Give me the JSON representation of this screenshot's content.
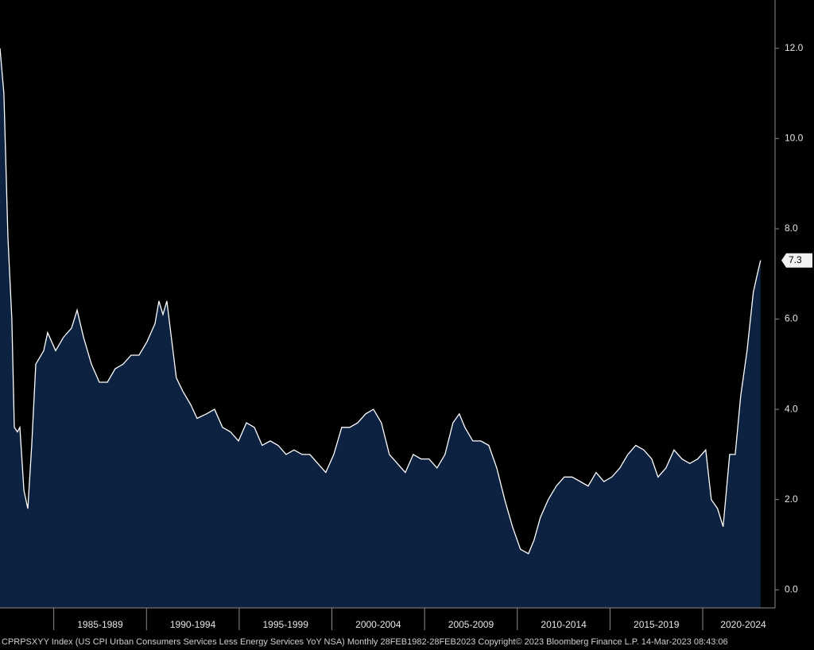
{
  "chart_data": {
    "type": "area",
    "footer": "CPRPSXYY Index (US CPI Urban Consumers Services Less Energy Services YoY NSA)  Monthly 28FEB1982-28FEB2023   Copyright© 2023 Bloomberg Finance L.P.   14-Mar-2023 08:43:06",
    "x": [
      1982.1,
      1982.31,
      1982.53,
      1982.74,
      1982.87,
      1983.04,
      1983.17,
      1983.39,
      1983.6,
      1983.81,
      1984.03,
      1984.46,
      1984.67,
      1985.1,
      1985.53,
      1985.96,
      1986.26,
      1986.6,
      1987.03,
      1987.46,
      1987.89,
      1988.31,
      1988.74,
      1989.17,
      1989.6,
      1990.03,
      1990.46,
      1990.67,
      1990.89,
      1991.1,
      1991.31,
      1991.61,
      1991.96,
      1992.39,
      1992.73,
      1993.24,
      1993.67,
      1994.1,
      1994.53,
      1994.96,
      1995.39,
      1995.82,
      1996.24,
      1996.67,
      1997.1,
      1997.53,
      1997.96,
      1998.39,
      1998.81,
      1999.24,
      1999.67,
      2000.1,
      2000.53,
      2000.96,
      2001.39,
      2001.82,
      2002.24,
      2002.67,
      2003.1,
      2003.53,
      2003.96,
      2004.39,
      2004.81,
      2005.24,
      2005.67,
      2006.1,
      2006.53,
      2006.87,
      2007.17,
      2007.6,
      2008.03,
      2008.46,
      2008.89,
      2009.32,
      2009.74,
      2010.17,
      2010.6,
      2010.9,
      2011.24,
      2011.67,
      2012.1,
      2012.53,
      2012.96,
      2013.39,
      2013.82,
      2014.25,
      2014.67,
      2015.1,
      2015.53,
      2015.96,
      2016.39,
      2016.82,
      2017.25,
      2017.59,
      2018.02,
      2018.45,
      2018.88,
      2019.3,
      2019.73,
      2020.16,
      2020.46,
      2020.8,
      2021.1,
      2021.45,
      2021.75,
      2022.05,
      2022.39,
      2022.73,
      2022.95,
      2023.12
    ],
    "series": [
      {
        "color": "#ffffff",
        "fill": "#0c2240",
        "values": [
          12.0,
          11.0,
          7.8,
          6.0,
          3.6,
          3.5,
          3.6,
          2.2,
          1.8,
          3.2,
          5.0,
          5.3,
          5.7,
          5.3,
          5.6,
          5.8,
          6.2,
          5.6,
          5.0,
          4.6,
          4.6,
          4.9,
          5.0,
          5.2,
          5.2,
          5.5,
          5.9,
          6.4,
          6.1,
          6.4,
          5.7,
          4.7,
          4.4,
          4.1,
          3.8,
          3.9,
          4.0,
          3.6,
          3.5,
          3.3,
          3.7,
          3.6,
          3.2,
          3.3,
          3.2,
          3.0,
          3.1,
          3.0,
          3.0,
          2.8,
          2.6,
          3.0,
          3.6,
          3.6,
          3.7,
          3.9,
          4.0,
          3.7,
          3.0,
          2.8,
          2.6,
          3.0,
          2.9,
          2.9,
          2.7,
          3.0,
          3.7,
          3.9,
          3.6,
          3.3,
          3.3,
          3.2,
          2.7,
          2.0,
          1.4,
          0.9,
          0.8,
          1.1,
          1.6,
          2.0,
          2.3,
          2.5,
          2.5,
          2.4,
          2.3,
          2.6,
          2.4,
          2.5,
          2.7,
          3.0,
          3.2,
          3.1,
          2.9,
          2.5,
          2.7,
          3.1,
          2.9,
          2.8,
          2.9,
          3.1,
          2.0,
          1.8,
          1.4,
          3.0,
          3.0,
          4.3,
          5.3,
          6.6,
          7.0,
          7.3
        ]
      }
    ],
    "last_value": {
      "value": 7.3,
      "label": "7.3"
    },
    "xlim": [
      1982.1,
      2023.9
    ],
    "xticks": [
      {
        "value": 1985,
        "label": "1985-1989"
      },
      {
        "value": 1990,
        "label": "1990-1994"
      },
      {
        "value": 1995,
        "label": "1995-1999"
      },
      {
        "value": 2000,
        "label": "2000-2004"
      },
      {
        "value": 2005,
        "label": "2005-2009"
      },
      {
        "value": 2010,
        "label": "2010-2014"
      },
      {
        "value": 2015,
        "label": "2015-2019"
      },
      {
        "value": 2020,
        "label": "2020-2024"
      }
    ],
    "ylim": [
      -0.4,
      13.07
    ],
    "yticks": [
      {
        "value": 0,
        "label": "0.0"
      },
      {
        "value": 2,
        "label": "2.0"
      },
      {
        "value": 4,
        "label": "4.0"
      },
      {
        "value": 6,
        "label": "6.0"
      },
      {
        "value": 8,
        "label": "8.0"
      },
      {
        "value": 10,
        "label": "10.0"
      },
      {
        "value": 12,
        "label": "12.0"
      }
    ]
  }
}
